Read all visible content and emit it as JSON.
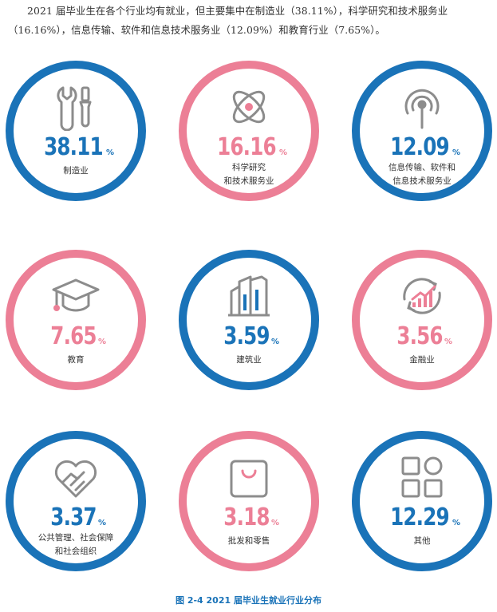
{
  "intro_text": "2021 届毕业生在各个行业均有就业，但主要集中在制造业（38.11%），科学研究和技术服务业（16.16%），信息传输、软件和信息技术服务业（12.09%）和教育行业（7.65%）。",
  "percent_unit": "%",
  "items": [
    {
      "icon": "tools-icon",
      "value": "38.11",
      "label_line1": "制造业",
      "label_line2": "",
      "color": "#1a73b8"
    },
    {
      "icon": "atom-icon",
      "value": "16.16",
      "label_line1": "科学研究",
      "label_line2": "和技术服务业",
      "color": "#ec7f96"
    },
    {
      "icon": "broadcast-icon",
      "value": "12.09",
      "label_line1": "信息传输、软件和",
      "label_line2": "信息技术服务业",
      "color": "#1a73b8"
    },
    {
      "icon": "graduation-cap-icon",
      "value": "7.65",
      "label_line1": "教育",
      "label_line2": "",
      "color": "#ec7f96"
    },
    {
      "icon": "building-icon",
      "value": "3.59",
      "label_line1": "建筑业",
      "label_line2": "",
      "color": "#1a73b8"
    },
    {
      "icon": "finance-chart-icon",
      "value": "3.56",
      "label_line1": "金融业",
      "label_line2": "",
      "color": "#ec7f96"
    },
    {
      "icon": "heart-hands-icon",
      "value": "3.37",
      "label_line1": "公共管理、社会保障",
      "label_line2": "和社会组织",
      "color": "#1a73b8"
    },
    {
      "icon": "shopping-bag-icon",
      "value": "3.18",
      "label_line1": "批发和零售",
      "label_line2": "",
      "color": "#ec7f96"
    },
    {
      "icon": "grid-apps-icon",
      "value": "12.29",
      "label_line1": "其他",
      "label_line2": "",
      "color": "#1a73b8"
    }
  ],
  "caption": "图 2-4  2021 届毕业生就业行业分布"
}
